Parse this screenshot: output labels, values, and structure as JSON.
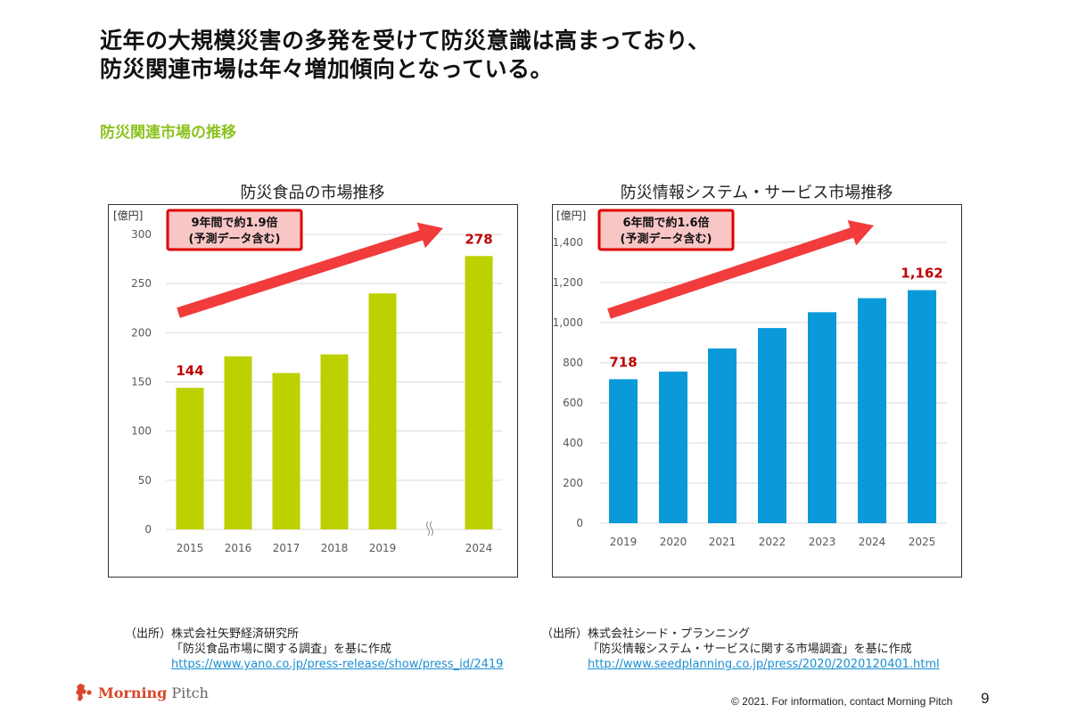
{
  "headline": {
    "line1": "近年の大規模災害の多発を受けて防災意識は高まっており、",
    "line2": "防災関連市場は年々増加傾向となっている。"
  },
  "section_title": "防災関連市場の推移",
  "colors": {
    "accent_green": "#8dc21f",
    "food_bar": "#bdd000",
    "info_bar": "#0b9ad9",
    "arrow": "#f23b3b",
    "callout_fill": "#f9c6c6",
    "callout_border": "#e00000",
    "value_label": "#c00000"
  },
  "chart_data": [
    {
      "type": "bar",
      "title": "防災食品の市場推移",
      "unit_label": "[億円]",
      "categories": [
        "2015",
        "2016",
        "2017",
        "2018",
        "2019",
        "2024"
      ],
      "values": [
        144,
        176,
        159,
        178,
        240,
        278
      ],
      "axis_break_between": [
        "2019",
        "2024"
      ],
      "axis_break_symbol": "≀≀",
      "ylim": [
        0,
        300
      ],
      "yticks": [
        0,
        50,
        100,
        150,
        200,
        250,
        300
      ],
      "ytick_labels": [
        "0",
        "50",
        "100",
        "150",
        "200",
        "250",
        "300"
      ],
      "data_labels": [
        {
          "category": "2015",
          "text": "144"
        },
        {
          "category": "2024",
          "text": "278"
        }
      ],
      "callout": {
        "line1": "9年間で約1.9倍",
        "line2": "(予測データ含む)"
      },
      "grid": true,
      "xlabel": "",
      "ylabel": "[億円]"
    },
    {
      "type": "bar",
      "title": "防災情報システム・サービス市場推移",
      "unit_label": "[億円]",
      "categories": [
        "2019",
        "2020",
        "2021",
        "2022",
        "2023",
        "2024",
        "2025"
      ],
      "values": [
        718,
        756,
        871,
        973,
        1052,
        1122,
        1162
      ],
      "ylim": [
        0,
        1400
      ],
      "yticks": [
        0,
        200,
        400,
        600,
        800,
        1000,
        1200,
        1400
      ],
      "ytick_labels": [
        "0",
        "200",
        "400",
        "600",
        "800",
        "1,000",
        "1,200",
        "1,400"
      ],
      "data_labels": [
        {
          "category": "2019",
          "text": "718"
        },
        {
          "category": "2025",
          "text": "1,162"
        }
      ],
      "callout": {
        "line1": "6年間で約1.6倍",
        "line2": "(予測データ含む)"
      },
      "grid": true,
      "xlabel": "",
      "ylabel": "[億円]"
    }
  ],
  "sources": [
    {
      "label": "（出所）",
      "company": "株式会社矢野経済研究所",
      "report": "「防災食品市場に関する調査」を基に作成",
      "url": "https://www.yano.co.jp/press-release/show/press_id/2419"
    },
    {
      "label": "（出所）",
      "company": "株式会社シード・プランニング",
      "report": "「防災情報システム・サービスに関する市場調査」を基に作成",
      "url": "http://www.seedplanning.co.jp/press/2020/2020120401.html"
    }
  ],
  "footer": {
    "logo_bold": "Morning",
    "logo_light": "Pitch",
    "copyright": "© 2021. For information, contact Morning Pitch",
    "page_number": "9"
  }
}
